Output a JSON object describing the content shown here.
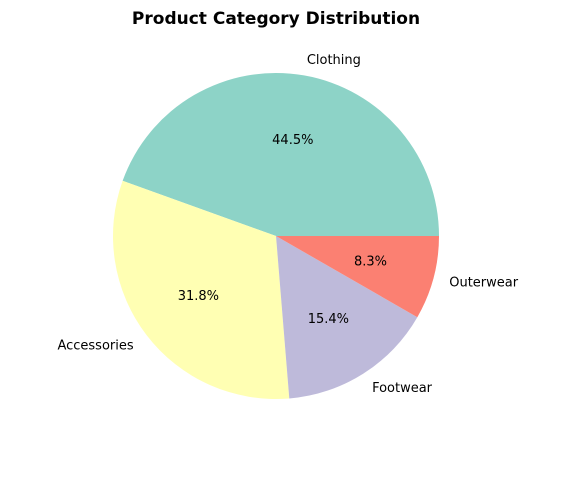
{
  "chart_data": {
    "type": "pie",
    "title": "Product Category Distribution",
    "categories": [
      "Clothing",
      "Accessories",
      "Footwear",
      "Outerwear"
    ],
    "values": [
      44.5,
      31.8,
      15.4,
      8.3
    ],
    "value_labels": [
      "44.5%",
      "31.8%",
      "15.4%",
      "8.3%"
    ],
    "colors": [
      "#8dd3c7",
      "#ffffb3",
      "#bebada",
      "#fb8072"
    ],
    "start_angle_deg": 0,
    "direction": "counterclockwise",
    "legend": "none"
  }
}
